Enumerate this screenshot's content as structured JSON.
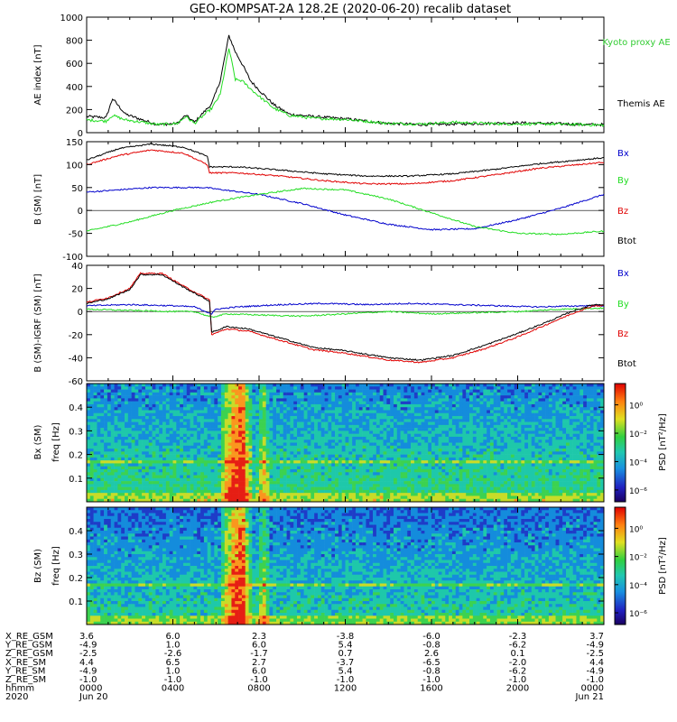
{
  "title": "GEO-KOMPSAT-2A 128.2E (2020-06-20) recalib dataset",
  "colors": {
    "black": "#000000",
    "red": "#e00000",
    "green": "#22dd22",
    "blue": "#0000cc",
    "kyoto_label": "#33cc33"
  },
  "chart_data": [
    {
      "id": "ae",
      "type": "line",
      "ylabel": "AE index [nT]",
      "ylim": [
        0,
        1000
      ],
      "yticks": [
        "0",
        "200",
        "400",
        "600",
        "800",
        "1000"
      ],
      "xlim_hours": [
        0,
        24
      ],
      "legend": [
        "Kyoto proxy AE",
        "Themis AE"
      ],
      "series": [
        {
          "name": "Themis AE",
          "color": "#000000",
          "x": [
            0,
            0.9,
            1.2,
            1.8,
            2.6,
            3.3,
            4.2,
            4.6,
            5.0,
            5.8,
            6.2,
            6.6,
            6.9,
            7.2,
            7.6,
            8.1,
            8.7,
            9.4,
            10.5,
            12,
            14,
            15.5,
            17,
            18.5,
            20,
            21.5,
            23,
            24
          ],
          "y": [
            140,
            130,
            295,
            160,
            110,
            70,
            80,
            150,
            90,
            250,
            450,
            840,
            700,
            600,
            450,
            350,
            240,
            160,
            140,
            120,
            80,
            70,
            75,
            80,
            85,
            80,
            70,
            70
          ]
        },
        {
          "name": "Kyoto proxy AE",
          "color": "#22dd22",
          "x": [
            0,
            0.9,
            1.2,
            1.8,
            2.6,
            3.3,
            4.2,
            4.6,
            5.0,
            5.8,
            6.2,
            6.6,
            6.9,
            7.2,
            7.6,
            8.1,
            8.7,
            9.4,
            10.5,
            12,
            14,
            15.5,
            17,
            18.5,
            20,
            21.5,
            23,
            24
          ],
          "y": [
            110,
            100,
            150,
            110,
            90,
            70,
            80,
            140,
            80,
            210,
            330,
            730,
            460,
            450,
            380,
            300,
            210,
            150,
            125,
            115,
            80,
            75,
            90,
            80,
            75,
            75,
            70,
            65
          ]
        }
      ]
    },
    {
      "id": "bsm",
      "type": "line",
      "ylabel": "B (SM) [nT]",
      "ylim": [
        -100,
        150
      ],
      "yticks": [
        "-100",
        "-50",
        "0",
        "50",
        "100",
        "150"
      ],
      "legend": [
        "Bx",
        "By",
        "Bz",
        "Btot"
      ],
      "series": [
        {
          "name": "Bx",
          "color": "#0000cc",
          "x": [
            0,
            3,
            5.5,
            8,
            10,
            12,
            14,
            16,
            18,
            20,
            22,
            24
          ],
          "y": [
            40,
            50,
            50,
            35,
            15,
            -10,
            -30,
            -42,
            -40,
            -20,
            5,
            35
          ]
        },
        {
          "name": "By",
          "color": "#22dd22",
          "x": [
            0,
            2,
            4,
            6,
            8,
            10,
            12,
            14,
            16,
            18,
            20,
            22,
            24
          ],
          "y": [
            -45,
            -25,
            0,
            20,
            35,
            48,
            45,
            25,
            -5,
            -35,
            -50,
            -52,
            -45
          ]
        },
        {
          "name": "Bz",
          "color": "#e00000",
          "x": [
            0,
            1.5,
            3,
            4.5,
            5.6,
            5.7,
            7,
            9,
            11,
            13,
            15,
            17,
            19,
            21,
            24
          ],
          "y": [
            100,
            120,
            132,
            125,
            100,
            82,
            82,
            75,
            65,
            58,
            58,
            65,
            78,
            92,
            105
          ]
        },
        {
          "name": "Btot",
          "color": "#000000",
          "x": [
            0,
            1.5,
            3,
            4.5,
            5.6,
            5.7,
            7,
            9,
            11,
            13,
            15,
            17,
            19,
            21,
            24
          ],
          "y": [
            110,
            135,
            145,
            138,
            118,
            95,
            95,
            88,
            80,
            75,
            75,
            80,
            90,
            102,
            115
          ]
        }
      ]
    },
    {
      "id": "dbsm",
      "type": "line",
      "ylabel": "B (SM)-IGRF (SM) [nT]",
      "ylim": [
        -60,
        40
      ],
      "yticks": [
        "-60",
        "-40",
        "-20",
        "0",
        "20",
        "40"
      ],
      "legend": [
        "Bx",
        "By",
        "Bz",
        "Btot"
      ],
      "series": [
        {
          "name": "Bx",
          "color": "#0000cc",
          "x": [
            0,
            2,
            4,
            5,
            5.8,
            6,
            7,
            9,
            11,
            13,
            15,
            17,
            19,
            21,
            23,
            24
          ],
          "y": [
            5,
            6,
            5,
            4,
            -2,
            2,
            4,
            6,
            7,
            6,
            7,
            6,
            5,
            4,
            5,
            5
          ]
        },
        {
          "name": "By",
          "color": "#22dd22",
          "x": [
            0,
            2,
            4,
            5,
            5.8,
            6.5,
            8,
            10,
            12,
            14,
            16,
            18,
            20,
            22,
            24
          ],
          "y": [
            2,
            1,
            0,
            0,
            -5,
            -2,
            -3,
            -4,
            -2,
            0,
            -2,
            -1,
            0,
            2,
            3
          ]
        },
        {
          "name": "Bz",
          "color": "#e00000",
          "x": [
            0,
            1,
            2,
            2.5,
            3.5,
            4.5,
            5.2,
            5.7,
            5.8,
            6.5,
            7.5,
            9,
            10.5,
            12,
            14,
            15.5,
            17,
            18.5,
            20,
            21.5,
            22.5,
            23.5,
            24
          ],
          "y": [
            8,
            12,
            20,
            33,
            33,
            22,
            15,
            10,
            -20,
            -15,
            -17,
            -25,
            -33,
            -36,
            -42,
            -44,
            -40,
            -32,
            -22,
            -10,
            -2,
            5,
            5
          ]
        },
        {
          "name": "Btot",
          "color": "#000000",
          "x": [
            0,
            1,
            2,
            2.5,
            3.5,
            4.5,
            5.2,
            5.7,
            5.8,
            6.5,
            7.5,
            9,
            10.5,
            12,
            14,
            15.5,
            17,
            18.5,
            20,
            21.5,
            22.5,
            23.5,
            24
          ],
          "y": [
            7,
            11,
            19,
            32,
            32,
            21,
            14,
            9,
            -18,
            -13,
            -15,
            -23,
            -31,
            -34,
            -40,
            -42,
            -38,
            -29,
            -19,
            -8,
            0,
            6,
            6
          ]
        }
      ]
    },
    {
      "id": "spec_bx",
      "type": "heatmap",
      "ylabel": "Bx (SM)",
      "freq_label": "freq [Hz]",
      "ylim": [
        0,
        0.5
      ],
      "yticks": [
        "0.1",
        "0.2",
        "0.3",
        "0.4"
      ],
      "colorbar_label": "PSD [nT²/Hz]",
      "colorbar_ticks": [
        "10⁰",
        "10⁻²",
        "10⁻⁴",
        "10⁻⁶"
      ],
      "features": {
        "line_freq": 0.17,
        "event_hours": [
          6.6,
          7.0,
          7.3,
          8.2
        ]
      }
    },
    {
      "id": "spec_bz",
      "type": "heatmap",
      "ylabel": "Bz (SM)",
      "freq_label": "freq [Hz]",
      "ylim": [
        0,
        0.5
      ],
      "yticks": [
        "0.1",
        "0.2",
        "0.3",
        "0.4"
      ],
      "colorbar_label": "PSD [nT²/Hz]",
      "colorbar_ticks": [
        "10⁰",
        "10⁻²",
        "10⁻⁴",
        "10⁻⁶"
      ],
      "features": {
        "line_freq": 0.17,
        "event_hours": [
          6.6,
          7.0,
          7.3,
          8.2
        ]
      }
    }
  ],
  "ephemeris": {
    "rows": [
      {
        "label": "X_RE_GSM",
        "values": [
          "3.6",
          "6.0",
          "2.3",
          "-3.8",
          "-6.0",
          "-2.3",
          "3.7"
        ]
      },
      {
        "label": "Y_RE_GSM",
        "values": [
          "-4.9",
          "1.0",
          "6.0",
          "5.4",
          "-0.8",
          "-6.2",
          "-4.9"
        ]
      },
      {
        "label": "Z_RE_GSM",
        "values": [
          "-2.5",
          "-2.6",
          "-1.7",
          "0.7",
          "2.6",
          "0.1",
          "-2.5"
        ]
      },
      {
        "label": "X_RE_SM",
        "values": [
          "4.4",
          "6.5",
          "2.7",
          "-3.7",
          "-6.5",
          "-2.0",
          "4.4"
        ]
      },
      {
        "label": "Y_RE_SM",
        "values": [
          "-4.9",
          "1.0",
          "6.0",
          "5.4",
          "-0.8",
          "-6.2",
          "-4.9"
        ]
      },
      {
        "label": "Z_RE_SM",
        "values": [
          "-1.0",
          "-1.0",
          "-1.0",
          "-1.0",
          "-1.0",
          "-1.0",
          "-1.0"
        ]
      },
      {
        "label": "hhmm",
        "values": [
          "0000",
          "0400",
          "0800",
          "1200",
          "1600",
          "2000",
          "0000"
        ]
      },
      {
        "label": "2020",
        "values": [
          "Jun 20",
          "",
          "",
          "",
          "",
          "",
          "Jun 21"
        ]
      }
    ]
  }
}
